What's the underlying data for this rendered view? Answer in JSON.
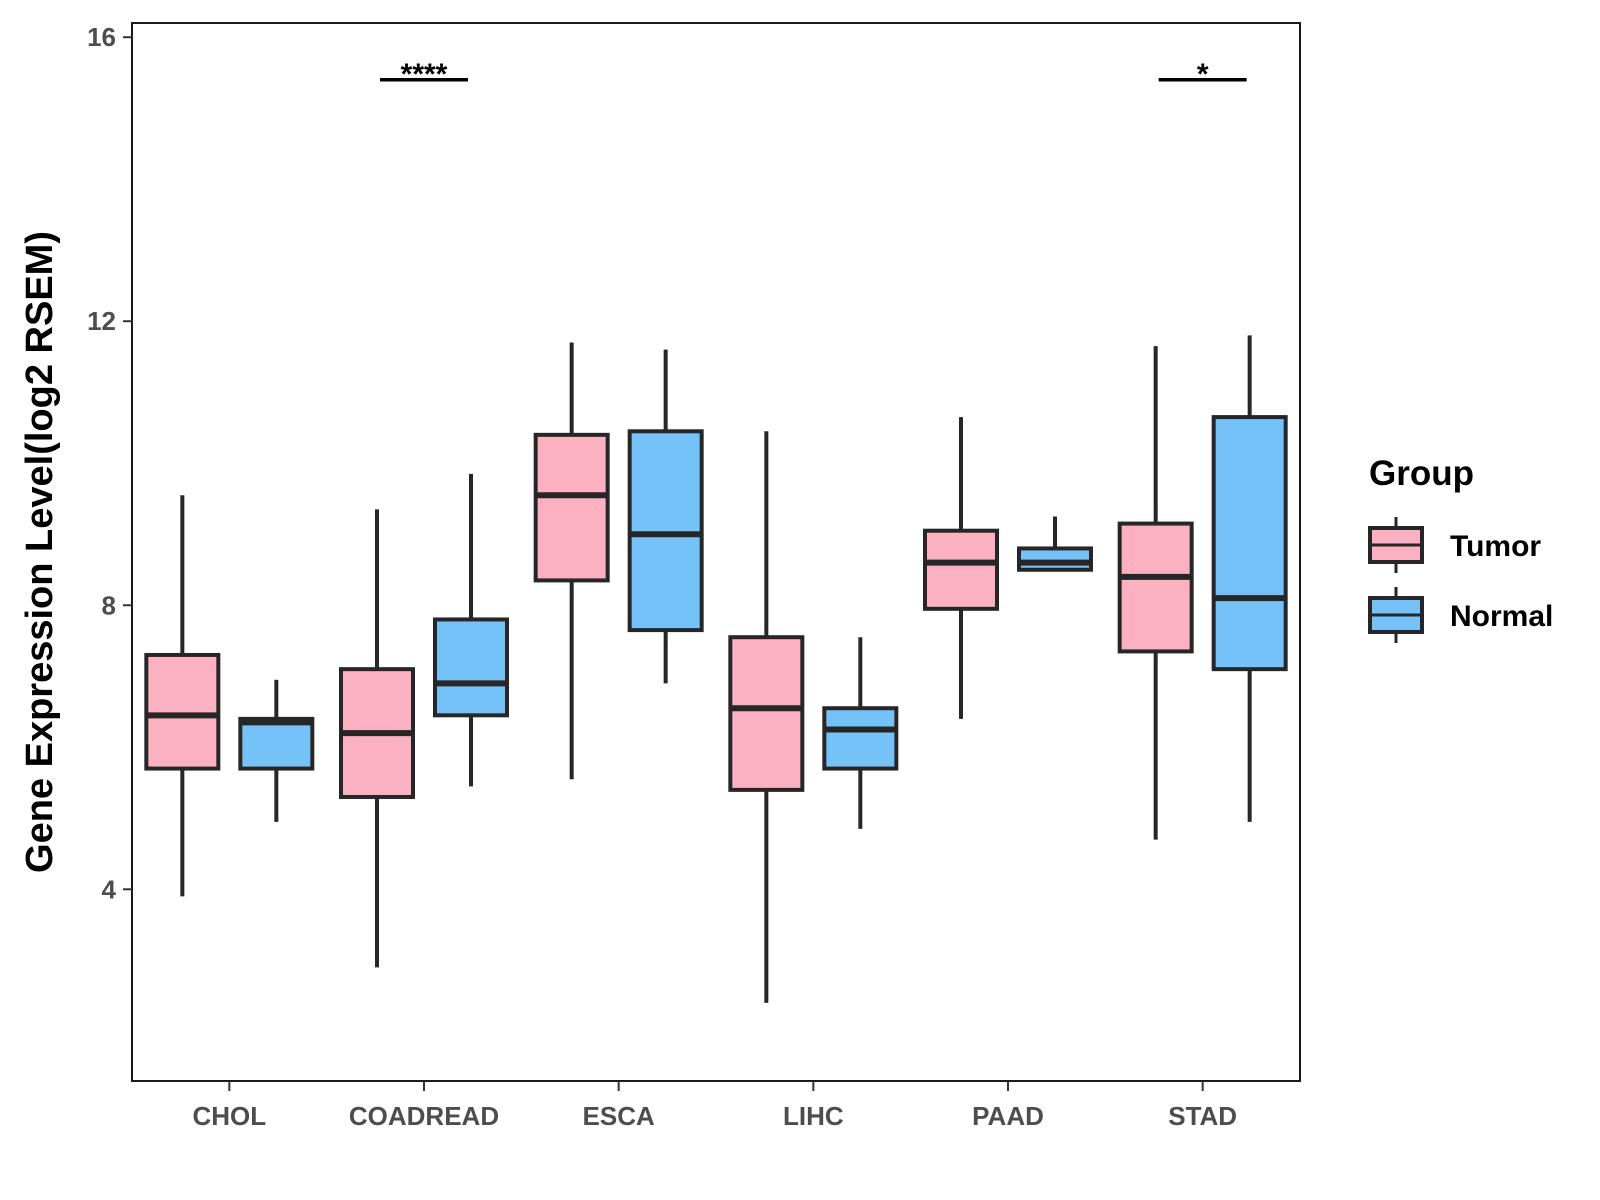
{
  "chart_data": {
    "type": "boxplot",
    "title": "",
    "xlabel": "",
    "ylabel": "Gene Expression Level(log2 RSEM)",
    "ylim": [
      1.3,
      16.2
    ],
    "yticks": [
      "4",
      "8",
      "12",
      "16"
    ],
    "categories": [
      "CHOL",
      "COADREAD",
      "ESCA",
      "LIHC",
      "PAAD",
      "STAD"
    ],
    "legend": {
      "title": "Group",
      "position": "right",
      "items": [
        {
          "name": "Tumor",
          "color": "#FBB1C2"
        },
        {
          "name": "Normal",
          "color": "#75C2F8"
        }
      ]
    },
    "series": [
      {
        "name": "Tumor",
        "color": "#FBB1C2",
        "boxes": [
          {
            "category": "CHOL",
            "min": 3.9,
            "q1": 5.7,
            "median": 6.45,
            "q3": 7.3,
            "max": 9.55
          },
          {
            "category": "COADREAD",
            "min": 2.9,
            "q1": 5.3,
            "median": 6.2,
            "q3": 7.1,
            "max": 9.35
          },
          {
            "category": "ESCA",
            "min": 5.55,
            "q1": 8.35,
            "median": 9.55,
            "q3": 10.4,
            "max": 11.7
          },
          {
            "category": "LIHC",
            "min": 2.4,
            "q1": 5.4,
            "median": 6.55,
            "q3": 7.55,
            "max": 10.45
          },
          {
            "category": "PAAD",
            "min": 6.4,
            "q1": 7.95,
            "median": 8.6,
            "q3": 9.05,
            "max": 10.65
          },
          {
            "category": "STAD",
            "min": 4.7,
            "q1": 7.35,
            "median": 8.4,
            "q3": 9.15,
            "max": 11.65
          }
        ]
      },
      {
        "name": "Normal",
        "color": "#75C2F8",
        "boxes": [
          {
            "category": "CHOL",
            "min": 4.95,
            "q1": 5.7,
            "median": 6.35,
            "q3": 6.4,
            "max": 6.95
          },
          {
            "category": "COADREAD",
            "min": 5.45,
            "q1": 6.45,
            "median": 6.9,
            "q3": 7.8,
            "max": 9.85
          },
          {
            "category": "ESCA",
            "min": 6.9,
            "q1": 7.65,
            "median": 9.0,
            "q3": 10.45,
            "max": 11.6
          },
          {
            "category": "LIHC",
            "min": 4.85,
            "q1": 5.7,
            "median": 6.25,
            "q3": 6.55,
            "max": 7.55
          },
          {
            "category": "PAAD",
            "min": 8.5,
            "q1": 8.5,
            "median": 8.6,
            "q3": 8.8,
            "max": 9.25
          },
          {
            "category": "STAD",
            "min": 4.95,
            "q1": 7.1,
            "median": 8.1,
            "q3": 10.65,
            "max": 11.8
          }
        ]
      }
    ],
    "annotations": [
      {
        "category": "COADREAD",
        "label": "****",
        "y": 15.4
      },
      {
        "category": "STAD",
        "label": "*",
        "y": 15.4
      }
    ]
  }
}
